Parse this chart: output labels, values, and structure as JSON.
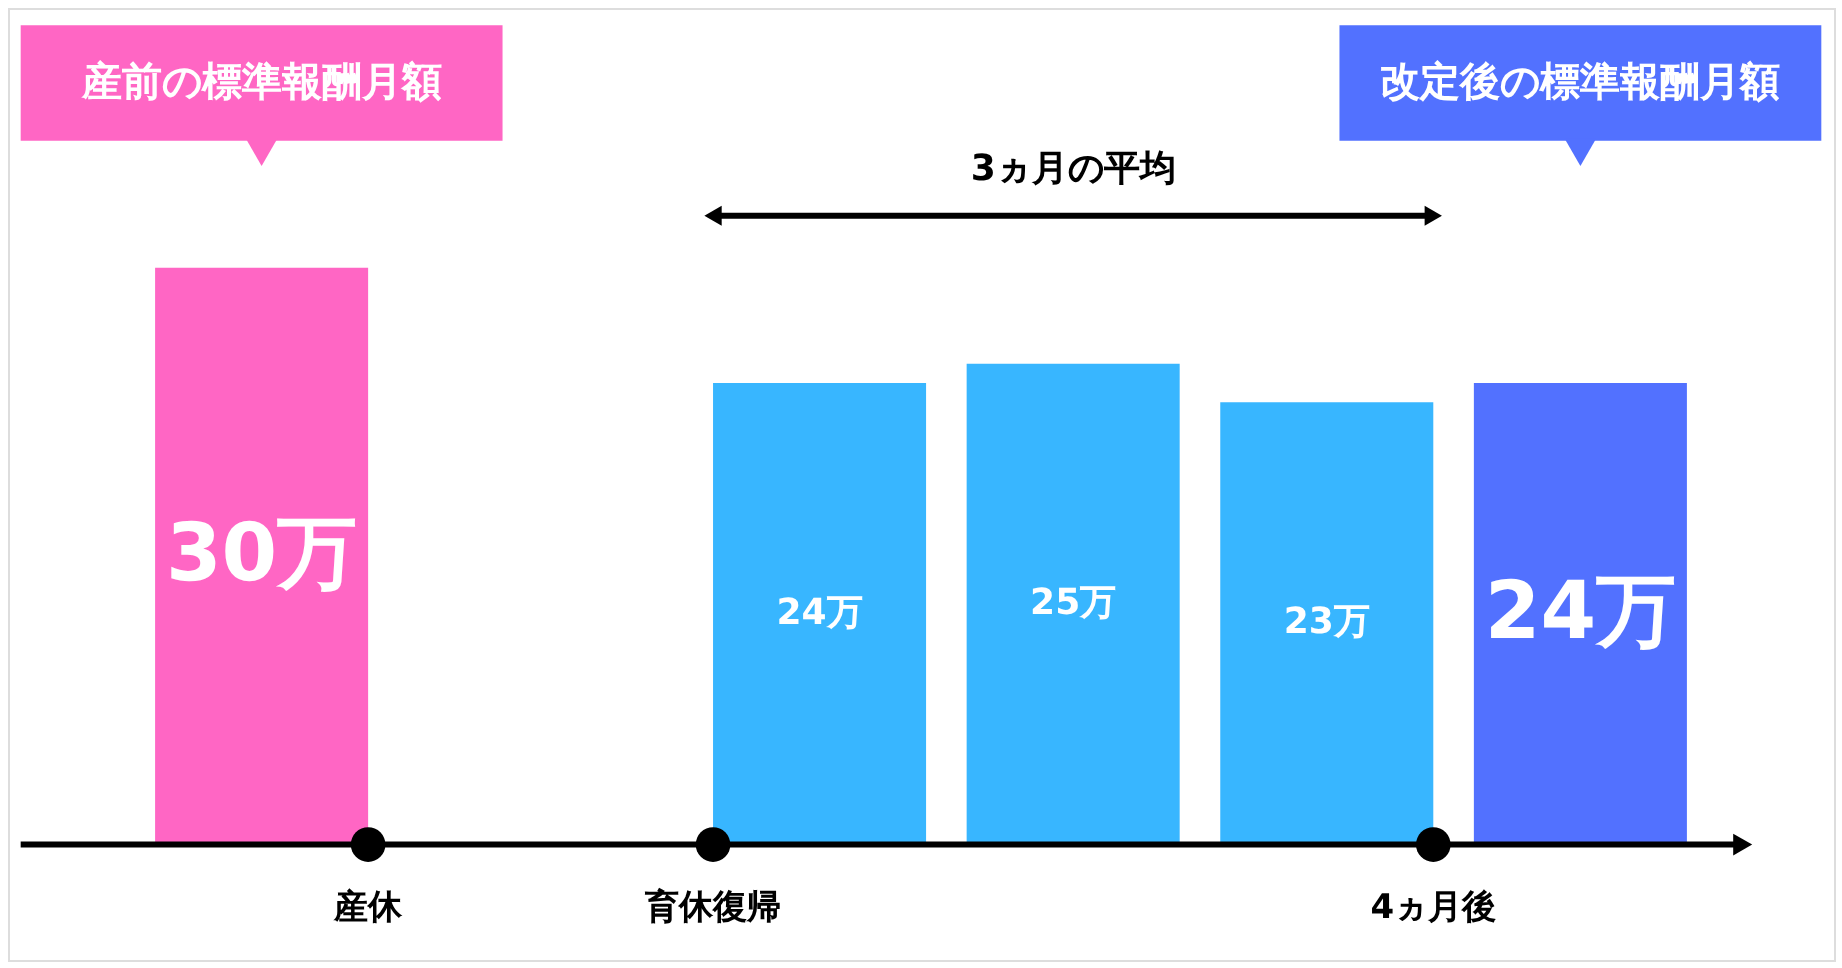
{
  "chart_data": {
    "type": "bar",
    "categories": [
      null,
      null,
      null,
      null,
      null
    ],
    "values": [
      30,
      24,
      25,
      23,
      24
    ],
    "value_labels": [
      "30万",
      "24万",
      "25万",
      "23万",
      "24万"
    ],
    "colors": [
      "#ff66c4",
      "#38b6ff",
      "#38b6ff",
      "#38b6ff",
      "#5271ff"
    ],
    "annotations": [
      "産前の標準報酬月額",
      "改定後の標準報酬月額",
      "3ヵ月の平均",
      "産休",
      "育休復帰",
      "4ヵ月後"
    ],
    "tick_labels": false
  }
}
